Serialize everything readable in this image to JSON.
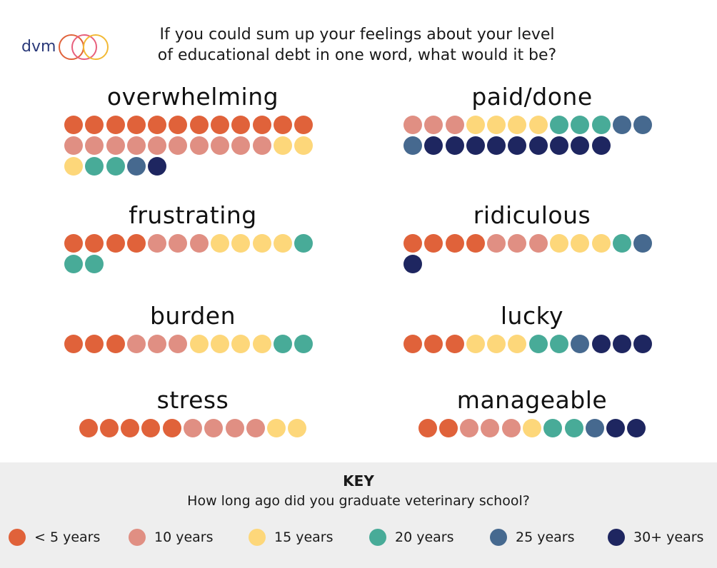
{
  "header": {
    "logo_text": "dvm360",
    "question_lines": [
      "If you could sum up your feelings about your level",
      "of educational debt in one word, what would it be?"
    ]
  },
  "colors": {
    "lt5": "#e0623a",
    "y10": "#e08f83",
    "y15": "#fdd77a",
    "y20": "#48ab98",
    "y25": "#46698f",
    "y30": "#1e2660"
  },
  "chart_data": {
    "type": "dot-matrix",
    "title": "If you could sum up your feelings about your level of educational debt in one word, what would it be?",
    "series_order": [
      "lt5",
      "y10",
      "y15",
      "y20",
      "y25",
      "y30"
    ],
    "categories": [
      {
        "word": "overwhelming",
        "counts": {
          "lt5": 12,
          "y10": 10,
          "y15": 3,
          "y20": 2,
          "y25": 1,
          "y30": 1
        }
      },
      {
        "word": "paid/done",
        "counts": {
          "lt5": 0,
          "y10": 3,
          "y15": 4,
          "y20": 3,
          "y25": 3,
          "y30": 9
        }
      },
      {
        "word": "frustrating",
        "counts": {
          "lt5": 4,
          "y10": 3,
          "y15": 4,
          "y20": 3,
          "y25": 0,
          "y30": 0
        }
      },
      {
        "word": "ridiculous",
        "counts": {
          "lt5": 4,
          "y10": 3,
          "y15": 3,
          "y20": 1,
          "y25": 1,
          "y30": 1
        }
      },
      {
        "word": "burden",
        "counts": {
          "lt5": 3,
          "y10": 3,
          "y15": 4,
          "y20": 2,
          "y25": 0,
          "y30": 0
        }
      },
      {
        "word": "lucky",
        "counts": {
          "lt5": 3,
          "y10": 0,
          "y15": 3,
          "y20": 2,
          "y25": 1,
          "y30": 3
        }
      },
      {
        "word": "stress",
        "counts": {
          "lt5": 5,
          "y10": 4,
          "y15": 2,
          "y20": 0,
          "y25": 0,
          "y30": 0
        }
      },
      {
        "word": "manageable",
        "counts": {
          "lt5": 2,
          "y10": 3,
          "y15": 1,
          "y20": 2,
          "y25": 1,
          "y30": 2
        }
      }
    ]
  },
  "key": {
    "title": "KEY",
    "question": "How long ago did you graduate veterinary school?",
    "items": [
      {
        "id": "lt5",
        "label": "< 5 years"
      },
      {
        "id": "y10",
        "label": "10 years"
      },
      {
        "id": "y15",
        "label": "15 years"
      },
      {
        "id": "y20",
        "label": "20 years"
      },
      {
        "id": "y25",
        "label": "25 years"
      },
      {
        "id": "y30",
        "label": "30+ years"
      }
    ]
  }
}
